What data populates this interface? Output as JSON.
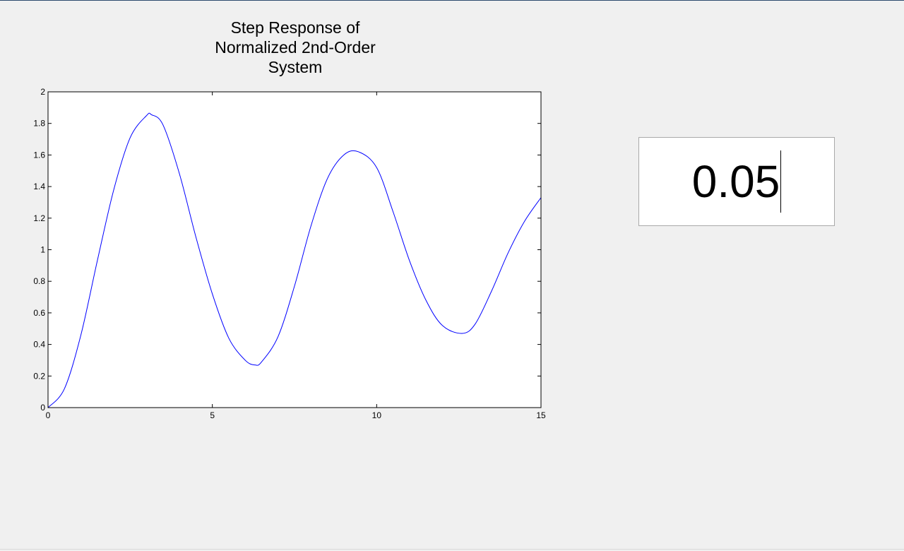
{
  "zeta_input": {
    "value": "0.05"
  },
  "chart_data": {
    "type": "line",
    "title_lines": [
      "Step Response of",
      "Normalized 2nd-Order",
      "System"
    ],
    "xlabel": "",
    "ylabel": "",
    "xlim": [
      0,
      15
    ],
    "ylim": [
      0,
      2
    ],
    "xticks": [
      0,
      5,
      10,
      15
    ],
    "xtick_labels": [
      "0",
      "5",
      "10",
      "15"
    ],
    "yticks": [
      0,
      0.2,
      0.4,
      0.6,
      0.8,
      1,
      1.2,
      1.4,
      1.6,
      1.8,
      2
    ],
    "ytick_labels": [
      "0",
      "0.2",
      "0.4",
      "0.6",
      "0.8",
      "1",
      "1.2",
      "1.4",
      "1.6",
      "1.8",
      "2"
    ],
    "grid": false,
    "series": [
      {
        "color": "#0000ff",
        "x": [
          0,
          0.5,
          1,
          1.5,
          2,
          2.5,
          3,
          3.15,
          3.5,
          4,
          4.5,
          5,
          5.5,
          6,
          6.3,
          6.5,
          7,
          7.5,
          8,
          8.5,
          9,
          9.45,
          10,
          10.5,
          11,
          11.5,
          12,
          12.6,
          13,
          13.5,
          14,
          14.5,
          15
        ],
        "y": [
          0,
          0.12,
          0.46,
          0.93,
          1.38,
          1.71,
          1.85,
          1.855,
          1.79,
          1.48,
          1.08,
          0.72,
          0.44,
          0.3,
          0.27,
          0.29,
          0.45,
          0.77,
          1.15,
          1.45,
          1.6,
          1.62,
          1.52,
          1.24,
          0.93,
          0.68,
          0.52,
          0.47,
          0.53,
          0.74,
          0.98,
          1.18,
          1.33
        ]
      }
    ]
  }
}
